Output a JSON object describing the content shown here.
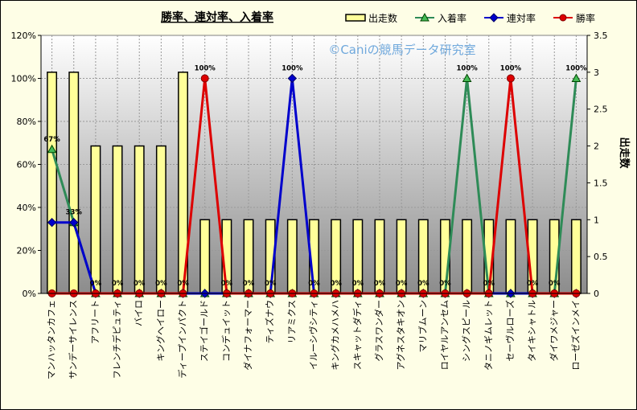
{
  "chart_data": {
    "type": "bar+line",
    "title": "勝率、連対率、入着率",
    "watermark": "©Caniの競馬データ研究室",
    "y2label": "出走数",
    "categories": [
      "マンハッタンカフェ",
      "サンデーサイレンス",
      "アフリート",
      "フレンチデピュティ",
      "バイロ",
      "キングヘイロー",
      "ディープインパクト",
      "ステイゴールド",
      "コンデュイット",
      "ダイナフォーマー",
      "ティズナウ",
      "リアミクス",
      "イルーシヴシティ",
      "キングカメハメハ",
      "スキャットダディ",
      "グラスワンダー",
      "アグネスタキオン",
      "マリブムーン",
      "ロイヤルアンセム",
      "シングスピール",
      "タニノギムレット",
      "セーヴルローズ",
      "タイキシャトル",
      "ダイワメジャー",
      "ローゼズインメイ"
    ],
    "y_ticks": [
      "0%",
      "20%",
      "40%",
      "60%",
      "80%",
      "100%",
      "120%"
    ],
    "y2_ticks": [
      "0",
      "0.5",
      "1",
      "1.5",
      "2",
      "2.5",
      "3",
      "3.5"
    ],
    "ylim": [
      0,
      1.2
    ],
    "y2lim": [
      0,
      3.5
    ],
    "grid": true,
    "legend_position": "top-right",
    "series": [
      {
        "name": "出走数",
        "type": "bar",
        "axis": "y2",
        "color": "#ffff99",
        "values": [
          3,
          3,
          2,
          2,
          2,
          2,
          3,
          1,
          1,
          1,
          1,
          1,
          1,
          1,
          1,
          1,
          1,
          1,
          1,
          1,
          1,
          1,
          1,
          1,
          1
        ]
      },
      {
        "name": "入着率",
        "type": "line",
        "axis": "y",
        "color": "#2e8b57",
        "marker": "triangle",
        "values": [
          0.67,
          0.33,
          0,
          0,
          0,
          0,
          0,
          0,
          0,
          0,
          0,
          0,
          0,
          0,
          0,
          0,
          0,
          0,
          0,
          1,
          0,
          0,
          0,
          0,
          1
        ]
      },
      {
        "name": "連対率",
        "type": "line",
        "axis": "y",
        "color": "#0000cc",
        "marker": "diamond",
        "values": [
          0.33,
          0.33,
          0,
          0,
          0,
          0,
          0,
          0,
          0,
          0,
          0,
          1,
          0,
          0,
          0,
          0,
          0,
          0,
          0,
          0,
          0,
          0,
          0,
          0,
          0
        ]
      },
      {
        "name": "勝率",
        "type": "line",
        "axis": "y",
        "color": "#dd0000",
        "marker": "circle",
        "values": [
          0,
          0,
          0,
          0,
          0,
          0,
          0,
          1,
          0,
          0,
          0,
          0,
          0,
          0,
          0,
          0,
          0,
          0,
          0,
          0,
          0,
          1,
          0,
          0,
          0
        ]
      }
    ],
    "data_labels": [
      {
        "index": 0,
        "text": "67%"
      },
      {
        "index": 1,
        "text": "33%"
      },
      {
        "index": 2,
        "text": "0%"
      },
      {
        "index": 3,
        "text": "0%"
      },
      {
        "index": 4,
        "text": "0%"
      },
      {
        "index": 5,
        "text": "0%"
      },
      {
        "index": 6,
        "text": "0%"
      },
      {
        "index": 7,
        "text": "100%"
      },
      {
        "index": 8,
        "text": "0%"
      },
      {
        "index": 9,
        "text": "0%"
      },
      {
        "index": 10,
        "text": "0%"
      },
      {
        "index": 11,
        "text": "100%"
      },
      {
        "index": 12,
        "text": "0%"
      },
      {
        "index": 13,
        "text": "0%"
      },
      {
        "index": 14,
        "text": "0%"
      },
      {
        "index": 15,
        "text": "0%"
      },
      {
        "index": 16,
        "text": "0%"
      },
      {
        "index": 17,
        "text": "0%"
      },
      {
        "index": 18,
        "text": "0%"
      },
      {
        "index": 19,
        "text": "100%"
      },
      {
        "index": 20,
        "text": "0%"
      },
      {
        "index": 21,
        "text": "100%"
      },
      {
        "index": 22,
        "text": "0%"
      },
      {
        "index": 23,
        "text": "0%"
      },
      {
        "index": 24,
        "text": "100%"
      }
    ]
  }
}
